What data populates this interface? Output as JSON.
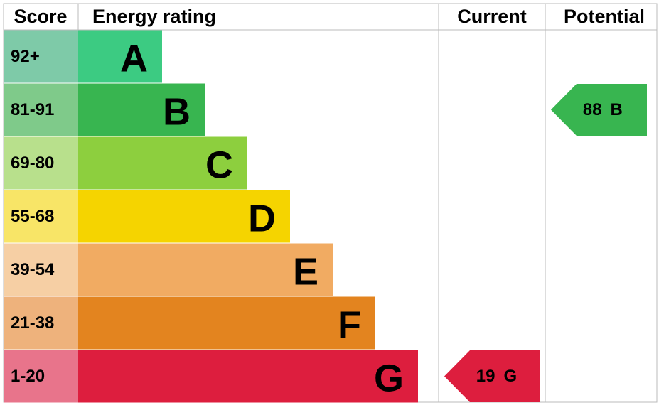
{
  "chart_data": {
    "type": "energy-rating",
    "headers": {
      "score": "Score",
      "rating": "Energy rating",
      "current": "Current",
      "potential": "Potential"
    },
    "bands": [
      {
        "score": "92+",
        "letter": "A",
        "color": "#3ccb82",
        "cell_color": "#7ecaa8"
      },
      {
        "score": "81-91",
        "letter": "B",
        "color": "#38b550",
        "cell_color": "#7fca8a"
      },
      {
        "score": "69-80",
        "letter": "C",
        "color": "#8dcf3e",
        "cell_color": "#b8e08c"
      },
      {
        "score": "55-68",
        "letter": "D",
        "color": "#f5d400",
        "cell_color": "#f8e567"
      },
      {
        "score": "39-54",
        "letter": "E",
        "color": "#f1ab62",
        "cell_color": "#f6cfa4"
      },
      {
        "score": "21-38",
        "letter": "F",
        "color": "#e3841f",
        "cell_color": "#eeb27c"
      },
      {
        "score": "1-20",
        "letter": "G",
        "color": "#dd1e3e",
        "cell_color": "#e8748b"
      }
    ],
    "current": {
      "value": 19,
      "letter": "G"
    },
    "potential": {
      "value": 88,
      "letter": "B"
    }
  }
}
